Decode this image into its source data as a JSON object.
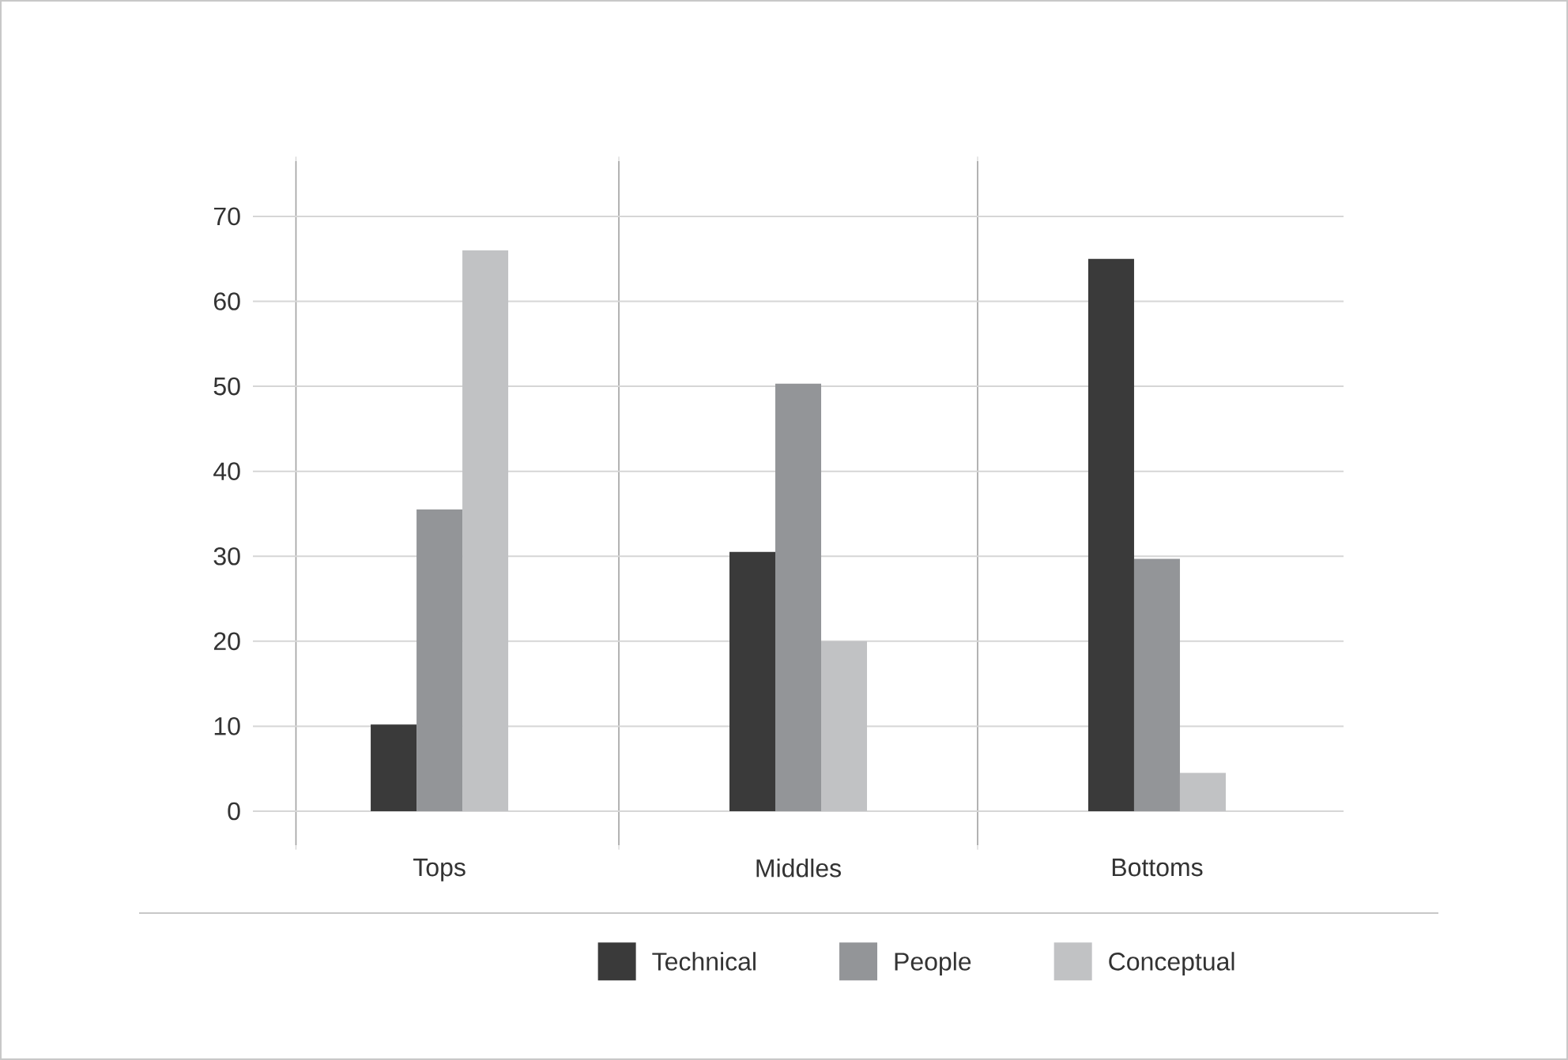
{
  "chart_data": {
    "type": "bar",
    "categories": [
      "Tops",
      "Middles",
      "Bottoms"
    ],
    "series": [
      {
        "name": "Technical",
        "color": "#3a3a3a",
        "values": [
          10.2,
          30.5,
          65
        ]
      },
      {
        "name": "People",
        "color": "#939598",
        "values": [
          35.5,
          50.3,
          29.7
        ]
      },
      {
        "name": "Conceptual",
        "color": "#c1c2c4",
        "values": [
          66,
          20,
          4.5
        ]
      }
    ],
    "ylim": [
      -4,
      76.5
    ],
    "yticks": [
      0,
      10,
      20,
      30,
      40,
      50,
      60,
      70
    ],
    "grid": true,
    "legend": "bottom"
  }
}
